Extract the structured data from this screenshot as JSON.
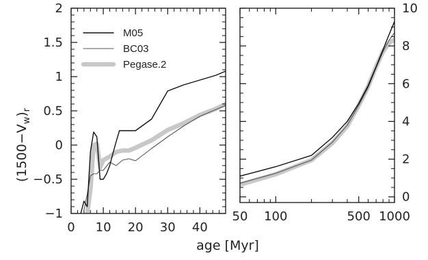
{
  "figure": {
    "ylabel": "(1500−V",
    "ylabel_sub_w": "w",
    "ylabel_close": ")",
    "ylabel_sub_r": "r",
    "xlabel": "age [Myr]"
  },
  "chart_data": [
    {
      "type": "line",
      "panel": "left",
      "xscale": "linear",
      "xlim": [
        0,
        48
      ],
      "ylim": [
        -1,
        2
      ],
      "xticks": [
        0,
        10,
        20,
        30,
        40
      ],
      "xtick_labels": [
        "0",
        "10",
        "20",
        "30",
        "40"
      ],
      "yticks": [
        -1,
        -0.5,
        0,
        0.5,
        1,
        1.5,
        2
      ],
      "ytick_labels": [
        "−1",
        "−0.5",
        "0",
        "0.5",
        "1",
        "1.5",
        "2"
      ],
      "legend_position": "top-left",
      "series": [
        {
          "name": "M05",
          "color": "#111111",
          "style": "thin-black",
          "x": [
            3,
            4,
            5,
            6,
            7,
            8,
            9,
            10,
            11,
            12,
            13,
            14,
            15,
            20,
            25,
            30,
            35,
            40,
            45,
            48
          ],
          "y": [
            -1.0,
            -0.82,
            -0.9,
            -0.1,
            0.19,
            0.12,
            -0.5,
            -0.5,
            -0.42,
            -0.3,
            -0.12,
            0.05,
            0.21,
            0.21,
            0.38,
            0.79,
            0.88,
            0.95,
            1.02,
            1.08
          ]
        },
        {
          "name": "BC03",
          "color": "#555555",
          "style": "thin-gray",
          "x": [
            4,
            5,
            6,
            7,
            8,
            9,
            10,
            12,
            14,
            16,
            18,
            20,
            25,
            30,
            35,
            40,
            45,
            48
          ],
          "y": [
            -0.95,
            -0.72,
            -0.45,
            -0.42,
            -0.42,
            -0.37,
            -0.37,
            -0.25,
            -0.3,
            -0.22,
            -0.2,
            -0.23,
            -0.05,
            0.12,
            0.28,
            0.42,
            0.52,
            0.58
          ]
        },
        {
          "name": "Pegase.2",
          "color": "#c8c8c8",
          "style": "thick-lightgray",
          "x": [
            5,
            6,
            7,
            8,
            9,
            10,
            12,
            14,
            16,
            18,
            20,
            25,
            30,
            35,
            40,
            45,
            48
          ],
          "y": [
            -1.0,
            -0.65,
            0.0,
            0.02,
            -0.33,
            -0.22,
            -0.17,
            -0.1,
            -0.08,
            -0.08,
            -0.04,
            0.07,
            0.22,
            0.32,
            0.44,
            0.53,
            0.6
          ]
        }
      ]
    },
    {
      "type": "line",
      "panel": "right",
      "xscale": "log",
      "xlim": [
        50,
        1000
      ],
      "ylim": [
        -0.3,
        10
      ],
      "xticks": [
        50,
        100,
        500,
        1000
      ],
      "xtick_labels": [
        "50",
        "100",
        "500",
        "1000"
      ],
      "yticks": [
        0,
        2,
        4,
        6,
        8,
        10
      ],
      "ytick_labels": [
        "0",
        "2",
        "4",
        "6",
        "8",
        "10"
      ],
      "series": [
        {
          "name": "M05",
          "color": "#111111",
          "style": "thin-black",
          "x": [
            50,
            100,
            200,
            300,
            400,
            500,
            600,
            700,
            800,
            900,
            1000
          ],
          "y": [
            1.1,
            1.6,
            2.2,
            3.15,
            4.0,
            4.95,
            5.9,
            6.9,
            7.8,
            8.6,
            9.3
          ]
        },
        {
          "name": "BC03",
          "color": "#555555",
          "style": "thin-gray",
          "x": [
            50,
            100,
            200,
            300,
            400,
            500,
            600,
            700,
            800,
            900,
            1000
          ],
          "y": [
            0.72,
            1.25,
            1.95,
            2.9,
            3.8,
            4.85,
            5.8,
            6.85,
            7.7,
            8.3,
            8.7
          ]
        },
        {
          "name": "Pegase.2",
          "color": "#c8c8c8",
          "style": "thick-lightgray",
          "x": [
            50,
            100,
            200,
            300,
            400,
            500,
            600,
            700,
            800,
            900,
            1000
          ],
          "y": [
            0.65,
            1.2,
            1.95,
            2.85,
            3.75,
            4.85,
            5.85,
            6.9,
            7.7,
            8.15,
            8.35
          ]
        }
      ]
    }
  ]
}
